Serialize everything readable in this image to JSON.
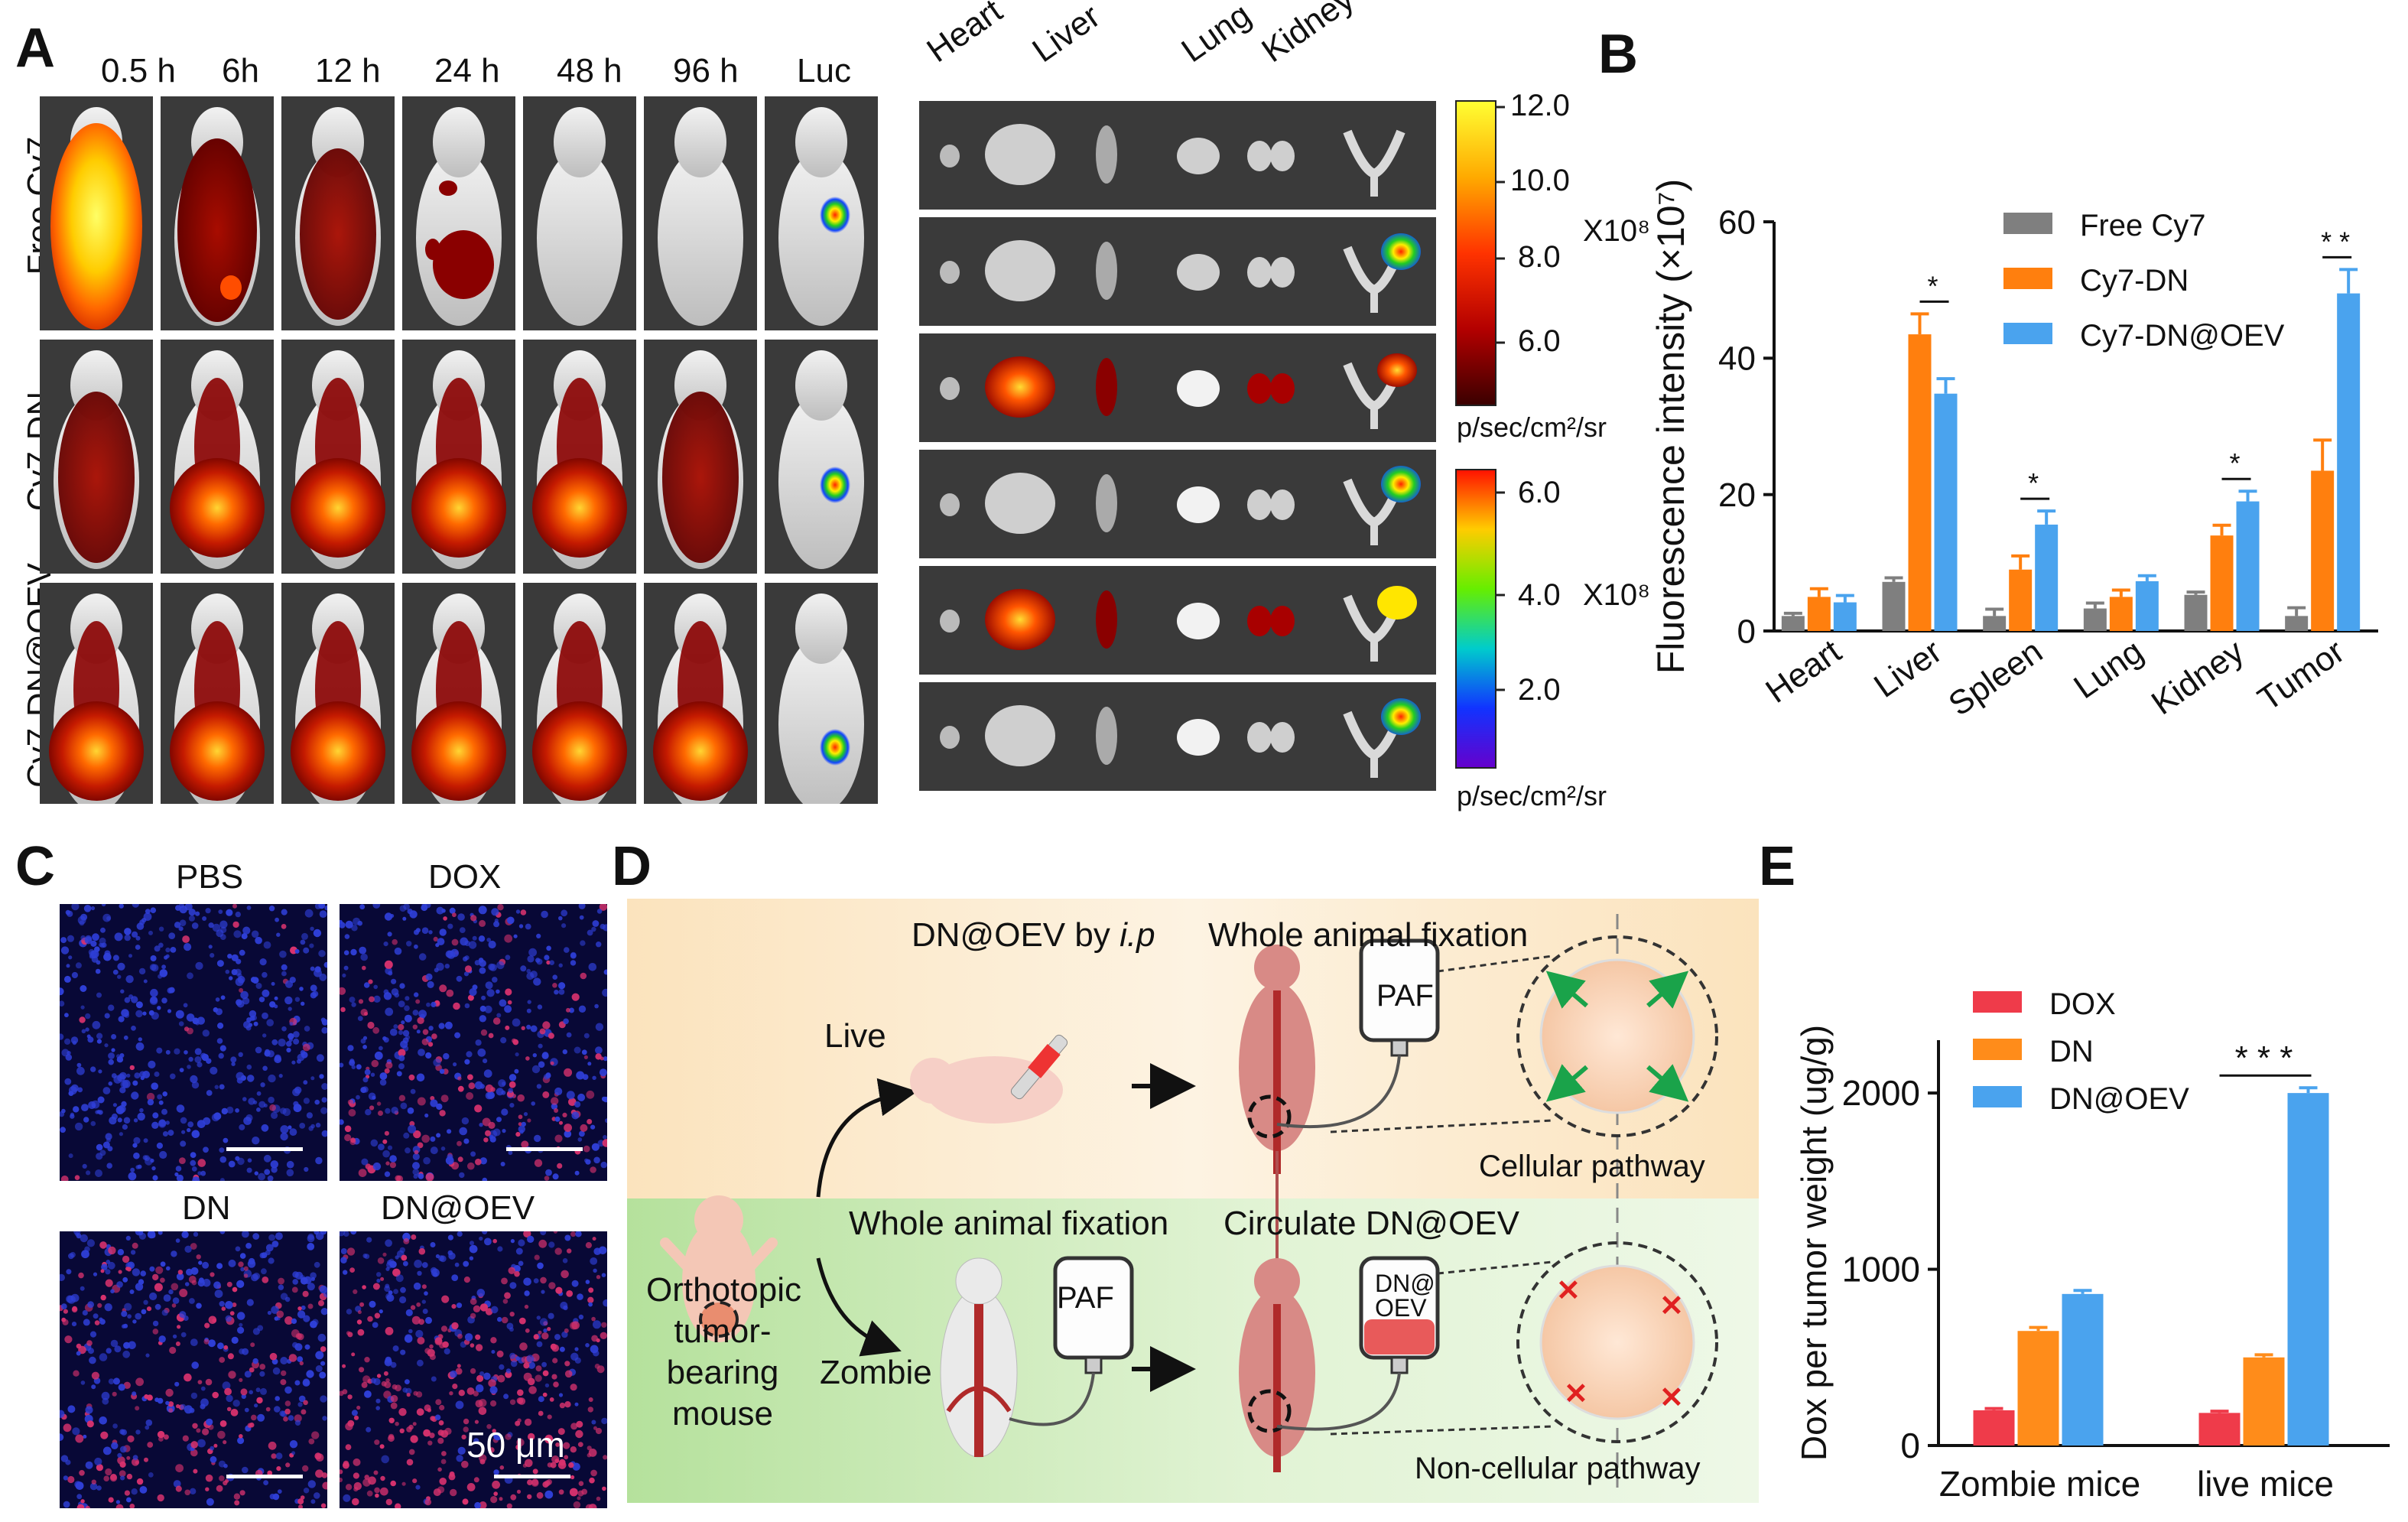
{
  "panels": {
    "a": "A",
    "b": "B",
    "c": "C",
    "d": "D",
    "e": "E"
  },
  "panel_a": {
    "time_labels": [
      "0.5 h",
      "6h",
      "12 h",
      "24 h",
      "48 h",
      "96 h",
      "Luc"
    ],
    "row_labels": [
      "Free Cy7",
      "Cy7-DN",
      "Cy7-DN@OEV"
    ],
    "organ_labels": [
      "Heart",
      "Liver",
      "Lung",
      "Kidney"
    ],
    "colorbar_top": {
      "ticks": [
        "12.0",
        "10.0",
        "8.0",
        "6.0"
      ],
      "multiplier": "X10⁸",
      "unit": "p/sec/cm²/sr"
    },
    "colorbar_bottom": {
      "ticks": [
        "6.0",
        "4.0",
        "2.0"
      ],
      "multiplier": "X10⁸",
      "unit": "p/sec/cm²/sr"
    }
  },
  "panel_c": {
    "labels": [
      "PBS",
      "DOX",
      "DN",
      "DN@OEV"
    ],
    "scale_bar": "50 μm"
  },
  "panel_d": {
    "top_title": "DN@OEV by ",
    "top_title_italic": "i.p",
    "fixation_top": "Whole animal fixation",
    "live": "Live",
    "paf": "PAF",
    "cellular": "Cellular pathway",
    "fixation_bottom": "Whole animal fixation",
    "circulate": "Circulate DN@OEV",
    "bag_label": [
      "DN@",
      "OEV"
    ],
    "zombie": "Zombie",
    "mouse_label": [
      "Orthotopic",
      "tumor-",
      "bearing",
      "mouse"
    ],
    "noncellular": "Non-cellular pathway",
    "colors": {
      "top_bg": "#fbe6c2",
      "bottom_bg": "#b9e3a2"
    }
  },
  "chart_data": [
    {
      "id": "B",
      "type": "bar",
      "categories": [
        "Heart",
        "Liver",
        "Spleen",
        "Lung",
        "Kidney",
        "Tumor"
      ],
      "series": [
        {
          "name": "Free Cy7",
          "color": "#7f7f7f",
          "values": [
            2.2,
            7.2,
            2.2,
            3.3,
            5.3,
            2.2
          ],
          "errors": [
            0.4,
            0.6,
            1.0,
            0.8,
            0.4,
            1.2
          ]
        },
        {
          "name": "Cy7-DN",
          "color": "#ff7f0e",
          "values": [
            5.0,
            43.5,
            9.0,
            5.0,
            14.0,
            23.5
          ],
          "errors": [
            1.2,
            3.0,
            2.0,
            1.0,
            1.5,
            4.5
          ]
        },
        {
          "name": "Cy7-DN@OEV",
          "color": "#4aa3ee",
          "values": [
            4.2,
            34.8,
            15.6,
            7.3,
            19.0,
            49.5
          ],
          "errors": [
            1.0,
            2.2,
            2.0,
            0.8,
            1.5,
            3.5
          ]
        }
      ],
      "ylabel": "Fluorescence intensity (×10⁷)",
      "ylim": [
        0,
        60
      ],
      "yticks": [
        0,
        20,
        40,
        60
      ],
      "significance": [
        {
          "category": "Liver",
          "label": "*"
        },
        {
          "category": "Spleen",
          "label": "*"
        },
        {
          "category": "Kidney",
          "label": "*"
        },
        {
          "category": "Tumor",
          "label": "* *"
        }
      ],
      "legend": "top-right"
    },
    {
      "id": "E",
      "type": "bar",
      "categories": [
        "Zombie mice",
        "live mice"
      ],
      "series": [
        {
          "name": "DOX",
          "color": "#ef3b4a",
          "values": [
            200,
            185
          ],
          "errors": [
            10,
            10
          ]
        },
        {
          "name": "DN",
          "color": "#ff8c1a",
          "values": [
            650,
            500
          ],
          "errors": [
            20,
            15
          ]
        },
        {
          "name": "DN@OEV",
          "color": "#4aa3ee",
          "values": [
            860,
            2000
          ],
          "errors": [
            20,
            30
          ]
        }
      ],
      "ylabel": "Dox per tumor weight (ug/g)",
      "ylim": [
        0,
        2300
      ],
      "yticks": [
        0,
        1000,
        2000
      ],
      "significance": [
        {
          "category": "live mice",
          "label": "* * *"
        }
      ],
      "legend": "top-left"
    }
  ]
}
